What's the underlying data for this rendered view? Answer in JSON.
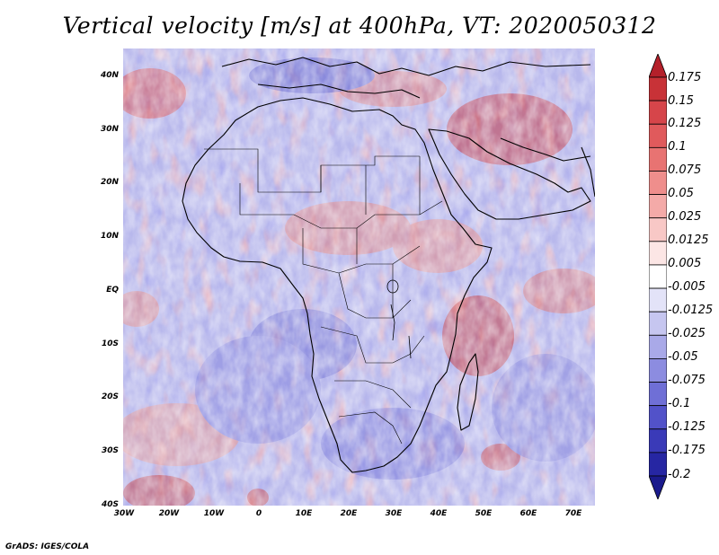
{
  "title": "Vertical velocity [m/s] at 400hPa, VT: 2020050312",
  "footer": "GrADS: IGES/COLA",
  "map": {
    "lon_range": [
      -30,
      75
    ],
    "lat_range": [
      -40,
      45
    ],
    "lat_labels": [
      "40N",
      "30N",
      "20N",
      "10N",
      "EQ",
      "10S",
      "20S",
      "30S",
      "40S"
    ],
    "lat_values": [
      40,
      30,
      20,
      10,
      0,
      -10,
      -20,
      -30,
      -40
    ],
    "lon_labels": [
      "30W",
      "20W",
      "10W",
      "0",
      "10E",
      "20E",
      "30E",
      "40E",
      "50E",
      "60E",
      "70E"
    ],
    "lon_values": [
      -30,
      -20,
      -10,
      0,
      10,
      20,
      30,
      40,
      50,
      60,
      70
    ]
  },
  "colorbar": {
    "labels": [
      "0.175",
      "0.15",
      "0.125",
      "0.1",
      "0.075",
      "0.05",
      "0.025",
      "0.0125",
      "0.005",
      "-0.005",
      "-0.0125",
      "-0.025",
      "-0.05",
      "-0.075",
      "-0.1",
      "-0.125",
      "-0.175",
      "-0.2"
    ],
    "colors": [
      "#b4202a",
      "#c83237",
      "#d6454a",
      "#e05a5c",
      "#e87372",
      "#ef8e8c",
      "#f4aaa8",
      "#f8c8c6",
      "#fce6e5",
      "#ffffff",
      "#e3e3f8",
      "#c6c6f0",
      "#a9a9e8",
      "#8c8ce0",
      "#6f6fd6",
      "#5252c9",
      "#3a3ab8",
      "#2626a3",
      "#1a1a8c"
    ]
  }
}
